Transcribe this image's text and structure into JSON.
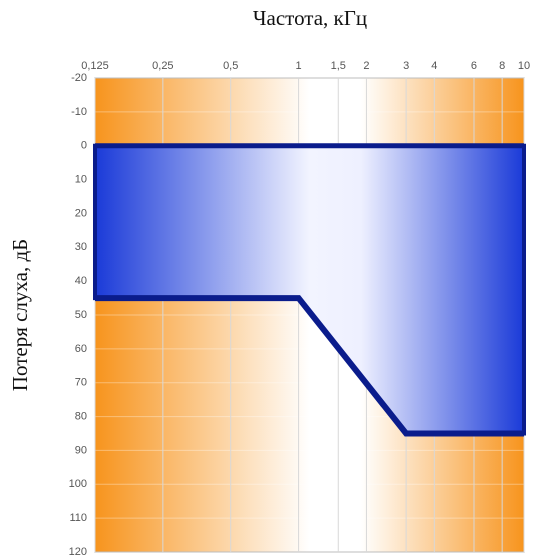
{
  "chart_data": {
    "type": "range-area",
    "title": "Частота, кГц",
    "y_label": "Потеря слуха, дБ",
    "x": [
      0.125,
      1,
      3,
      10
    ],
    "low": [
      0,
      0,
      0,
      0
    ],
    "high": [
      45,
      45,
      85,
      85
    ],
    "color": "#0a1c8c",
    "x_log": true,
    "y_inverted": true,
    "xlim": [
      0.125,
      10
    ],
    "xticks": [
      {
        "value": 0.125,
        "label": "0,125"
      },
      {
        "value": 0.25,
        "label": "0,25"
      },
      {
        "value": 0.5,
        "label": "0,5"
      },
      1,
      {
        "value": 1.5,
        "label": "1,5"
      },
      2,
      3,
      4,
      6,
      8,
      10
    ],
    "ylim": [
      -20,
      120
    ],
    "yticks": [
      -20,
      -10,
      0,
      10,
      20,
      30,
      40,
      50,
      60,
      70,
      80,
      90,
      100,
      110,
      120
    ],
    "grid": true
  }
}
